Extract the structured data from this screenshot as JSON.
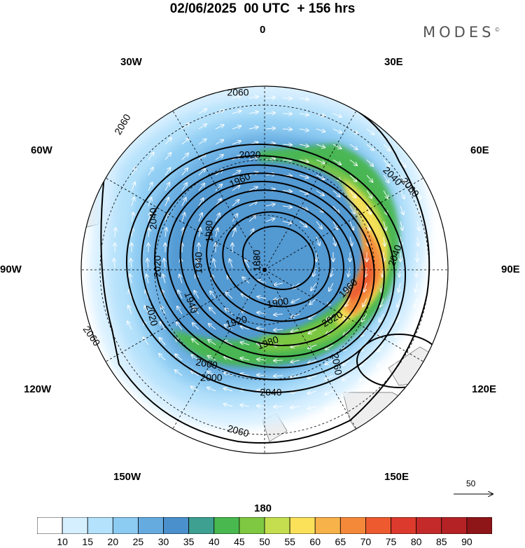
{
  "title": "02/06/2025  00 UTC  + 156 hrs",
  "brand": "MODES",
  "brand_mark": "©",
  "longitude_labels": {
    "n": "0",
    "ne": "30E",
    "e1": "60E",
    "e": "90E",
    "se1": "120E",
    "se": "150E",
    "s": "180",
    "sw": "150W",
    "w1": "120W",
    "w": "90W",
    "nw1": "60W",
    "nw": "30W"
  },
  "contour_labels": [
    "1880",
    "1900",
    "1920",
    "1940",
    "1960",
    "1980",
    "2000",
    "2020",
    "2040",
    "2060"
  ],
  "vector_reference": "50",
  "colorbar": {
    "levels": [
      "10",
      "15",
      "20",
      "25",
      "30",
      "35",
      "40",
      "45",
      "50",
      "55",
      "60",
      "65",
      "70",
      "75",
      "80",
      "85",
      "90"
    ],
    "colors": [
      "#ffffff",
      "#d6efff",
      "#b4e1fb",
      "#8ccbf2",
      "#66abe0",
      "#4a90cc",
      "#3ea090",
      "#49b84e",
      "#7ec842",
      "#c4de50",
      "#fbe15a",
      "#f7b24a",
      "#f5893a",
      "#ed5a30",
      "#db3a2c",
      "#c42a2a",
      "#b52226",
      "#8e1518"
    ]
  },
  "colors": {
    "land": "#eeeeee",
    "coast": "#666666",
    "contour": "#000000",
    "vector": "#ffffff"
  }
}
